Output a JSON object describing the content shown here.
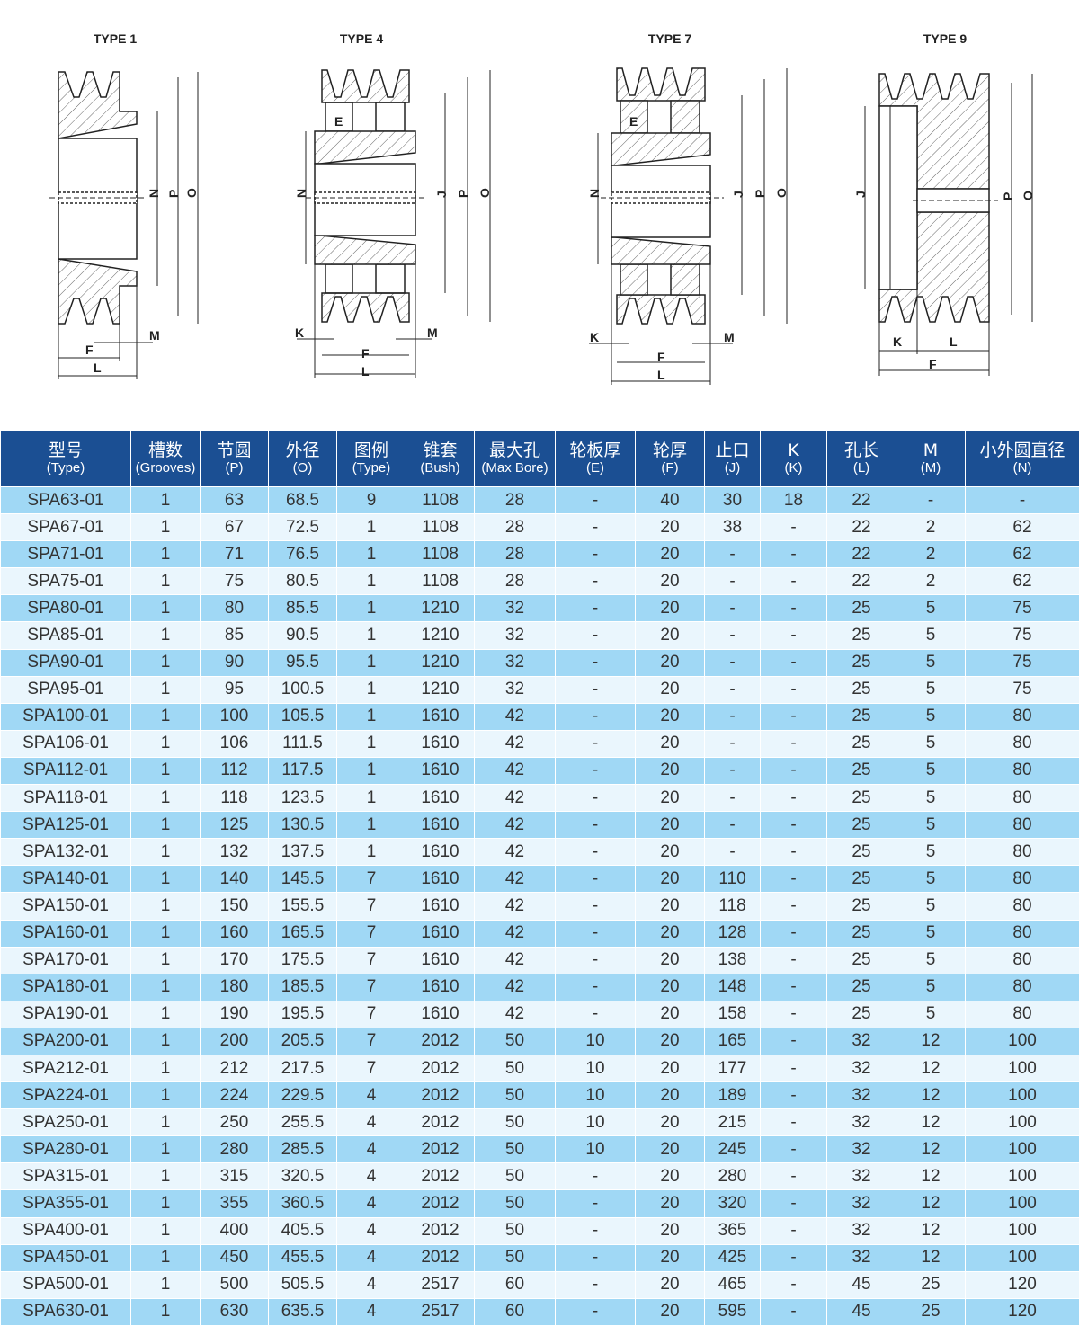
{
  "diagrams": [
    {
      "title": "TYPE 1",
      "labels": {
        "N": "N",
        "P": "P",
        "O": "O",
        "F": "F",
        "L": "L",
        "M": "M"
      }
    },
    {
      "title": "TYPE 4",
      "labels": {
        "E": "E",
        "N": "N",
        "J": "J",
        "P": "P",
        "O": "O",
        "K": "K",
        "F": "F",
        "L": "L",
        "M": "M"
      }
    },
    {
      "title": "TYPE 7",
      "labels": {
        "E": "E",
        "N": "N",
        "J": "J",
        "P": "P",
        "O": "O",
        "K": "K",
        "F": "F",
        "L": "L",
        "M": "M"
      }
    },
    {
      "title": "TYPE 9",
      "labels": {
        "J": "J",
        "P": "P",
        "O": "O",
        "K": "K",
        "L": "L",
        "F": "F"
      }
    }
  ],
  "colors": {
    "header_bg": "#1b4f93",
    "row_odd": "#a0d8f5",
    "row_even": "#eaf6fd"
  },
  "table": {
    "columns": [
      {
        "zh": "型号",
        "en": "(Type)"
      },
      {
        "zh": "槽数",
        "en": "(Grooves)"
      },
      {
        "zh": "节圆",
        "en": "(P)"
      },
      {
        "zh": "外径",
        "en": "(O)"
      },
      {
        "zh": "图例",
        "en": "(Type)"
      },
      {
        "zh": "锥套",
        "en": "(Bush)"
      },
      {
        "zh": "最大孔",
        "en": "(Max Bore)"
      },
      {
        "zh": "轮板厚",
        "en": "(E)"
      },
      {
        "zh": "轮厚",
        "en": "(F)"
      },
      {
        "zh": "止口",
        "en": "(J)"
      },
      {
        "zh": "K",
        "en": "(K)"
      },
      {
        "zh": "孔长",
        "en": "(L)"
      },
      {
        "zh": "M",
        "en": "(M)"
      },
      {
        "zh": "小外圆直径",
        "en": "(N)"
      }
    ],
    "rows": [
      [
        "SPA63-01",
        "1",
        "63",
        "68.5",
        "9",
        "1108",
        "28",
        "-",
        "40",
        "30",
        "18",
        "22",
        "-",
        "-"
      ],
      [
        "SPA67-01",
        "1",
        "67",
        "72.5",
        "1",
        "1108",
        "28",
        "-",
        "20",
        "38",
        "-",
        "22",
        "2",
        "62"
      ],
      [
        "SPA71-01",
        "1",
        "71",
        "76.5",
        "1",
        "1108",
        "28",
        "-",
        "20",
        "-",
        "-",
        "22",
        "2",
        "62"
      ],
      [
        "SPA75-01",
        "1",
        "75",
        "80.5",
        "1",
        "1108",
        "28",
        "-",
        "20",
        "-",
        "-",
        "22",
        "2",
        "62"
      ],
      [
        "SPA80-01",
        "1",
        "80",
        "85.5",
        "1",
        "1210",
        "32",
        "-",
        "20",
        "-",
        "-",
        "25",
        "5",
        "75"
      ],
      [
        "SPA85-01",
        "1",
        "85",
        "90.5",
        "1",
        "1210",
        "32",
        "-",
        "20",
        "-",
        "-",
        "25",
        "5",
        "75"
      ],
      [
        "SPA90-01",
        "1",
        "90",
        "95.5",
        "1",
        "1210",
        "32",
        "-",
        "20",
        "-",
        "-",
        "25",
        "5",
        "75"
      ],
      [
        "SPA95-01",
        "1",
        "95",
        "100.5",
        "1",
        "1210",
        "32",
        "-",
        "20",
        "-",
        "-",
        "25",
        "5",
        "75"
      ],
      [
        "SPA100-01",
        "1",
        "100",
        "105.5",
        "1",
        "1610",
        "42",
        "-",
        "20",
        "-",
        "-",
        "25",
        "5",
        "80"
      ],
      [
        "SPA106-01",
        "1",
        "106",
        "111.5",
        "1",
        "1610",
        "42",
        "-",
        "20",
        "-",
        "-",
        "25",
        "5",
        "80"
      ],
      [
        "SPA112-01",
        "1",
        "112",
        "117.5",
        "1",
        "1610",
        "42",
        "-",
        "20",
        "-",
        "-",
        "25",
        "5",
        "80"
      ],
      [
        "SPA118-01",
        "1",
        "118",
        "123.5",
        "1",
        "1610",
        "42",
        "-",
        "20",
        "-",
        "-",
        "25",
        "5",
        "80"
      ],
      [
        "SPA125-01",
        "1",
        "125",
        "130.5",
        "1",
        "1610",
        "42",
        "-",
        "20",
        "-",
        "-",
        "25",
        "5",
        "80"
      ],
      [
        "SPA132-01",
        "1",
        "132",
        "137.5",
        "1",
        "1610",
        "42",
        "-",
        "20",
        "-",
        "-",
        "25",
        "5",
        "80"
      ],
      [
        "SPA140-01",
        "1",
        "140",
        "145.5",
        "7",
        "1610",
        "42",
        "-",
        "20",
        "110",
        "-",
        "25",
        "5",
        "80"
      ],
      [
        "SPA150-01",
        "1",
        "150",
        "155.5",
        "7",
        "1610",
        "42",
        "-",
        "20",
        "118",
        "-",
        "25",
        "5",
        "80"
      ],
      [
        "SPA160-01",
        "1",
        "160",
        "165.5",
        "7",
        "1610",
        "42",
        "-",
        "20",
        "128",
        "-",
        "25",
        "5",
        "80"
      ],
      [
        "SPA170-01",
        "1",
        "170",
        "175.5",
        "7",
        "1610",
        "42",
        "-",
        "20",
        "138",
        "-",
        "25",
        "5",
        "80"
      ],
      [
        "SPA180-01",
        "1",
        "180",
        "185.5",
        "7",
        "1610",
        "42",
        "-",
        "20",
        "148",
        "-",
        "25",
        "5",
        "80"
      ],
      [
        "SPA190-01",
        "1",
        "190",
        "195.5",
        "7",
        "1610",
        "42",
        "-",
        "20",
        "158",
        "-",
        "25",
        "5",
        "80"
      ],
      [
        "SPA200-01",
        "1",
        "200",
        "205.5",
        "7",
        "2012",
        "50",
        "10",
        "20",
        "165",
        "-",
        "32",
        "12",
        "100"
      ],
      [
        "SPA212-01",
        "1",
        "212",
        "217.5",
        "7",
        "2012",
        "50",
        "10",
        "20",
        "177",
        "-",
        "32",
        "12",
        "100"
      ],
      [
        "SPA224-01",
        "1",
        "224",
        "229.5",
        "4",
        "2012",
        "50",
        "10",
        "20",
        "189",
        "-",
        "32",
        "12",
        "100"
      ],
      [
        "SPA250-01",
        "1",
        "250",
        "255.5",
        "4",
        "2012",
        "50",
        "10",
        "20",
        "215",
        "-",
        "32",
        "12",
        "100"
      ],
      [
        "SPA280-01",
        "1",
        "280",
        "285.5",
        "4",
        "2012",
        "50",
        "10",
        "20",
        "245",
        "-",
        "32",
        "12",
        "100"
      ],
      [
        "SPA315-01",
        "1",
        "315",
        "320.5",
        "4",
        "2012",
        "50",
        "-",
        "20",
        "280",
        "-",
        "32",
        "12",
        "100"
      ],
      [
        "SPA355-01",
        "1",
        "355",
        "360.5",
        "4",
        "2012",
        "50",
        "-",
        "20",
        "320",
        "-",
        "32",
        "12",
        "100"
      ],
      [
        "SPA400-01",
        "1",
        "400",
        "405.5",
        "4",
        "2012",
        "50",
        "-",
        "20",
        "365",
        "-",
        "32",
        "12",
        "100"
      ],
      [
        "SPA450-01",
        "1",
        "450",
        "455.5",
        "4",
        "2012",
        "50",
        "-",
        "20",
        "425",
        "-",
        "32",
        "12",
        "100"
      ],
      [
        "SPA500-01",
        "1",
        "500",
        "505.5",
        "4",
        "2517",
        "60",
        "-",
        "20",
        "465",
        "-",
        "45",
        "25",
        "120"
      ],
      [
        "SPA630-01",
        "1",
        "630",
        "635.5",
        "4",
        "2517",
        "60",
        "-",
        "20",
        "595",
        "-",
        "45",
        "25",
        "120"
      ]
    ]
  }
}
